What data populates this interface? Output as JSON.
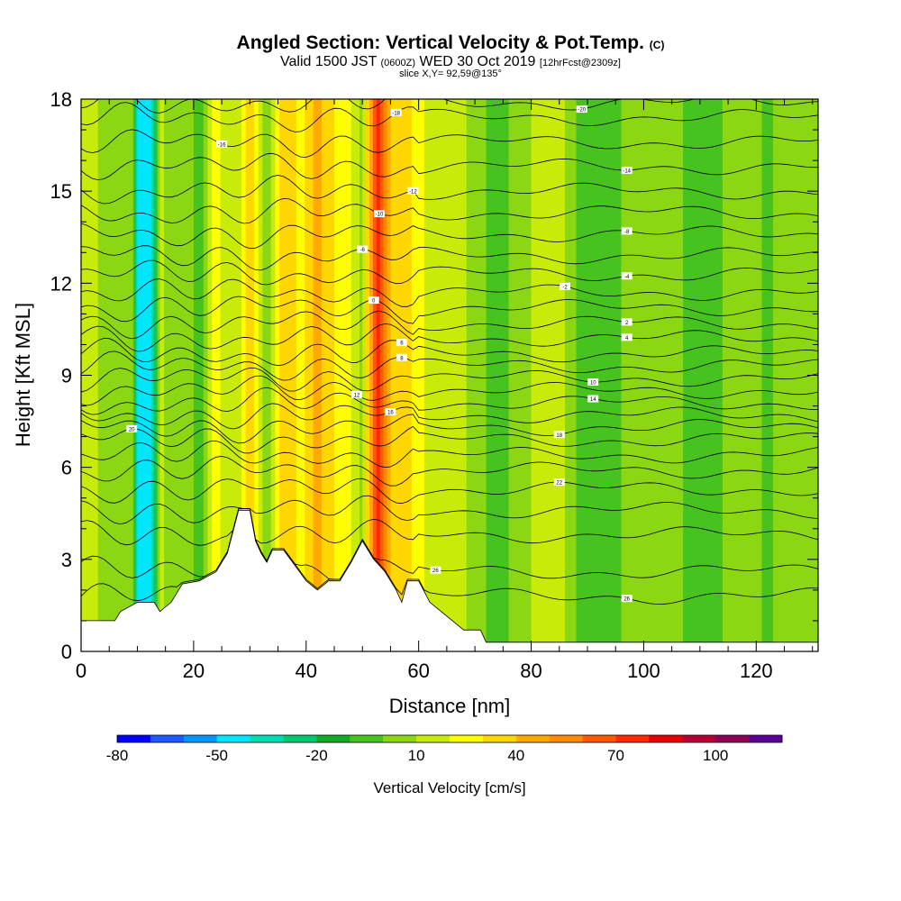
{
  "chart_data": {
    "type": "heatmap",
    "title_main": "Angled Section: Vertical Velocity & Pot.Temp.",
    "title_units": "(C)",
    "subtitle_prefix": "Valid 1500 JST",
    "subtitle_zulu": "(0600Z)",
    "subtitle_date": "WED 30 Oct 2019",
    "subtitle_fcst": "[12hrFcst@2309z]",
    "slice_label": "slice X,Y= 92,59@135°",
    "xlabel": "Distance [nm]",
    "ylabel": "Height [Kft MSL]",
    "xlim": [
      0,
      131
    ],
    "ylim": [
      0,
      18
    ],
    "x_ticks": [
      "0",
      "20",
      "40",
      "60",
      "80",
      "100",
      "120"
    ],
    "y_ticks": [
      "0",
      "3",
      "6",
      "9",
      "12",
      "15",
      "18"
    ],
    "colorbar_label": "Vertical Velocity [cm/s]",
    "colorbar_ticks": [
      "-80",
      "-50",
      "-20",
      "10",
      "40",
      "70",
      "100"
    ],
    "colorbar_colors": [
      "#0000ff",
      "#1e5aff",
      "#0096ff",
      "#00e6ff",
      "#00dcb4",
      "#00c86e",
      "#14aa28",
      "#46c31e",
      "#8cd714",
      "#c8eb0a",
      "#ffff00",
      "#ffd700",
      "#ffaa00",
      "#ff8c00",
      "#ff5a00",
      "#ff2800",
      "#e60000",
      "#b40032",
      "#8c005a",
      "#5a0096"
    ],
    "columns": [
      {
        "x": 0,
        "w": 10
      },
      {
        "x": 3,
        "w": 10
      },
      {
        "x": 6,
        "w": 5
      },
      {
        "x": 9,
        "w": 8
      },
      {
        "x": 10,
        "w": -40
      },
      {
        "x": 12.5,
        "w": -45
      },
      {
        "x": 14,
        "w": 15
      },
      {
        "x": 17,
        "w": 0
      },
      {
        "x": 19,
        "w": 5
      },
      {
        "x": 21,
        "w": -5
      },
      {
        "x": 24,
        "w": 25
      },
      {
        "x": 27,
        "w": 10
      },
      {
        "x": 30,
        "w": 35
      },
      {
        "x": 33,
        "w": 5
      },
      {
        "x": 36,
        "w": 40
      },
      {
        "x": 39,
        "w": 25
      },
      {
        "x": 42,
        "w": 45
      },
      {
        "x": 45,
        "w": 30
      },
      {
        "x": 48,
        "w": 20
      },
      {
        "x": 50,
        "w": 5
      },
      {
        "x": 52.5,
        "w": 75
      },
      {
        "x": 55,
        "w": 40
      },
      {
        "x": 58,
        "w": 35
      },
      {
        "x": 61,
        "w": 20
      },
      {
        "x": 64,
        "w": 10
      },
      {
        "x": 67,
        "w": 15
      },
      {
        "x": 70,
        "w": 5
      },
      {
        "x": 74,
        "w": -5
      },
      {
        "x": 78,
        "w": 5
      },
      {
        "x": 82,
        "w": 15
      },
      {
        "x": 86,
        "w": 10
      },
      {
        "x": 90,
        "w": -10
      },
      {
        "x": 94,
        "w": -5
      },
      {
        "x": 98,
        "w": 5
      },
      {
        "x": 102,
        "w": 0
      },
      {
        "x": 106,
        "w": 5
      },
      {
        "x": 110,
        "w": -10
      },
      {
        "x": 114,
        "w": 0
      },
      {
        "x": 118,
        "w": 10
      },
      {
        "x": 122,
        "w": -5
      },
      {
        "x": 126,
        "w": 10
      },
      {
        "x": 131,
        "w": 5
      }
    ],
    "terrain": [
      [
        0,
        1.0
      ],
      [
        6,
        1.0
      ],
      [
        7,
        1.3
      ],
      [
        10,
        1.6
      ],
      [
        13,
        1.6
      ],
      [
        14,
        1.3
      ],
      [
        16,
        1.6
      ],
      [
        18,
        2.2
      ],
      [
        21,
        2.3
      ],
      [
        24,
        2.6
      ],
      [
        26,
        3.2
      ],
      [
        28,
        4.6
      ],
      [
        30,
        4.6
      ],
      [
        31,
        3.6
      ],
      [
        32,
        3.2
      ],
      [
        33,
        2.9
      ],
      [
        34,
        3.3
      ],
      [
        36,
        3.3
      ],
      [
        38,
        2.8
      ],
      [
        40,
        2.3
      ],
      [
        42,
        2.0
      ],
      [
        44,
        2.3
      ],
      [
        46,
        2.3
      ],
      [
        48,
        2.9
      ],
      [
        50,
        3.6
      ],
      [
        52,
        3.0
      ],
      [
        54,
        2.6
      ],
      [
        56,
        2.0
      ],
      [
        57,
        1.6
      ],
      [
        58,
        2.3
      ],
      [
        60,
        2.3
      ],
      [
        62,
        1.6
      ],
      [
        64,
        1.3
      ],
      [
        66,
        1.0
      ],
      [
        68,
        0.7
      ],
      [
        71,
        0.7
      ],
      [
        72,
        0.3
      ],
      [
        131,
        0.3
      ]
    ],
    "theta_lines": [
      {
        "h": 1.8,
        "label": "26",
        "lx": 97
      },
      {
        "h": 2.6,
        "label": "26",
        "lx": 63
      },
      {
        "h": 3.8
      },
      {
        "h": 4.6
      },
      {
        "h": 5.3,
        "label": "22",
        "lx": 85
      },
      {
        "h": 5.9
      },
      {
        "h": 6.4
      },
      {
        "h": 6.9,
        "label": "20",
        "lx": 9
      },
      {
        "h": 7.3,
        "label": "18",
        "lx": 85
      },
      {
        "h": 7.7,
        "label": "16",
        "lx": 55
      },
      {
        "h": 8.1,
        "label": "14",
        "lx": 91
      },
      {
        "h": 8.5,
        "label": "12",
        "lx": 49
      },
      {
        "h": 8.9,
        "label": "10",
        "lx": 91
      },
      {
        "h": 9.3,
        "label": "8",
        "lx": 57
      },
      {
        "h": 9.7,
        "label": "6",
        "lx": 57
      },
      {
        "h": 10.2,
        "label": "4",
        "lx": 97
      },
      {
        "h": 10.7,
        "label": "2",
        "lx": 97
      },
      {
        "h": 11.2,
        "label": "0",
        "lx": 52
      },
      {
        "h": 11.7,
        "label": "-2",
        "lx": 86
      },
      {
        "h": 12.3,
        "label": "-4",
        "lx": 97
      },
      {
        "h": 12.9,
        "label": "-6",
        "lx": 50
      },
      {
        "h": 13.6,
        "label": "-8",
        "lx": 97
      },
      {
        "h": 14.3,
        "label": "-10",
        "lx": 53
      },
      {
        "h": 15.0,
        "label": "-12",
        "lx": 59
      },
      {
        "h": 15.8,
        "label": "-14",
        "lx": 97
      },
      {
        "h": 16.6,
        "label": "-16",
        "lx": 25
      },
      {
        "h": 17.4,
        "label": "-18",
        "lx": 56
      },
      {
        "h": 17.9,
        "label": "-20",
        "lx": 89
      }
    ]
  }
}
